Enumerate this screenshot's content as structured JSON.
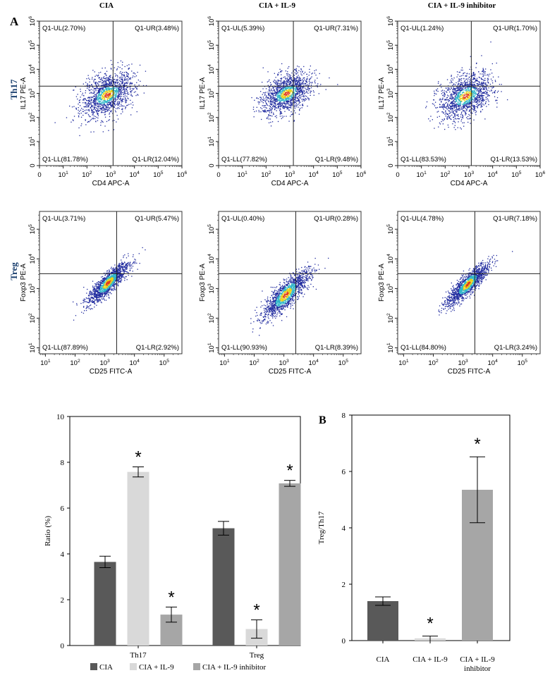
{
  "figure": {
    "panel_labels": [
      "A",
      "B"
    ],
    "column_titles": [
      "CIA",
      "CIA + IL-9",
      "CIA + IL-9 inhibitor"
    ],
    "row_labels": [
      "Th17",
      "Treg"
    ]
  },
  "colors": {
    "cia": "#595959",
    "cia_il9": "#d9d9d9",
    "cia_il9_inhibitor": "#a6a6a6",
    "axis": "#000000",
    "density_low": "#1f2a9e",
    "density_mid": "#2fb6c9",
    "density_high": "#e8d21c",
    "density_peak": "#e23b1c"
  },
  "chart_data": [
    {
      "type": "scatter",
      "subtype": "flow-cytometry-density",
      "row": "Th17",
      "column": "CIA",
      "xlabel": "CD4 APC-A",
      "ylabel": "IL17 PE-A",
      "x_ticks": [
        "0",
        "10^1",
        "10^2",
        "10^3",
        "10^4",
        "10^5",
        "10^6"
      ],
      "y_ticks": [
        "0",
        "10^1",
        "10^2",
        "10^3",
        "10^4",
        "10^5",
        "10^6"
      ],
      "gate": {
        "x_log": 3.1,
        "y_log": 3.3
      },
      "cluster": {
        "x_log": 2.85,
        "y_log": 2.95,
        "spread_x": 0.55,
        "spread_y": 0.55
      },
      "quadrants": {
        "UL": "Q1-UL(2.70%)",
        "UR": "Q1-UR(3.48%)",
        "LL": "Q1-LL(81.78%)",
        "LR": "Q1-LR(12.04%)"
      }
    },
    {
      "type": "scatter",
      "subtype": "flow-cytometry-density",
      "row": "Th17",
      "column": "CIA + IL-9",
      "xlabel": "CD4 APC-A",
      "ylabel": "IL17 PE-A",
      "x_ticks": [
        "0",
        "10^1",
        "10^2",
        "10^3",
        "10^4",
        "10^5",
        "10^6"
      ],
      "y_ticks": [
        "0",
        "10^1",
        "10^2",
        "10^3",
        "10^4",
        "10^5",
        "10^6"
      ],
      "gate": {
        "x_log": 3.15,
        "y_log": 3.3
      },
      "cluster": {
        "x_log": 2.85,
        "y_log": 3.0,
        "spread_x": 0.5,
        "spread_y": 0.5
      },
      "quadrants": {
        "UL": "Q1-UL(5.39%)",
        "UR": "Q1-UR(7.31%)",
        "LL": "Q1-LL(77.82%)",
        "LR": "Q1-LR(9.48%)"
      }
    },
    {
      "type": "scatter",
      "subtype": "flow-cytometry-density",
      "row": "Th17",
      "column": "CIA + IL-9 inhibitor",
      "xlabel": "CD4 APC-A",
      "ylabel": "IL17 PE-A",
      "x_ticks": [
        "0",
        "10^1",
        "10^2",
        "10^3",
        "10^4",
        "10^5",
        "10^6"
      ],
      "y_ticks": [
        "0",
        "10^1",
        "10^2",
        "10^3",
        "10^4",
        "10^5",
        "10^6"
      ],
      "gate": {
        "x_log": 3.1,
        "y_log": 3.3
      },
      "cluster": {
        "x_log": 2.85,
        "y_log": 2.9,
        "spread_x": 0.55,
        "spread_y": 0.55
      },
      "quadrants": {
        "UL": "Q1-UL(1.24%)",
        "UR": "Q1-UR(1.70%)",
        "LL": "Q1-LL(83.53%)",
        "LR": "Q1-LR(13.53%)"
      }
    },
    {
      "type": "scatter",
      "subtype": "flow-cytometry-density",
      "row": "Treg",
      "column": "CIA",
      "xlabel": "CD25 FITC-A",
      "ylabel": "Foxp3 PE-A",
      "x_ticks": [
        "10^1",
        "10^2",
        "10^3",
        "10^4",
        "10^5"
      ],
      "y_ticks": [
        "10^1",
        "10^2",
        "10^3",
        "10^4",
        "10^5"
      ],
      "gate": {
        "x_log": 3.4,
        "y_log": 3.5
      },
      "cluster": {
        "x_log": 3.1,
        "y_log": 3.2,
        "spread_x": 0.35,
        "spread_y": 0.35
      },
      "quadrants": {
        "UL": "Q1-UL(3.71%)",
        "UR": "Q1-UR(5.47%)",
        "LL": "Q1-LL(87.89%)",
        "LR": "Q1-LR(2.92%)"
      }
    },
    {
      "type": "scatter",
      "subtype": "flow-cytometry-density",
      "row": "Treg",
      "column": "CIA + IL-9",
      "xlabel": "CD25 FITC-A",
      "ylabel": "Foxp3 PE-A",
      "x_ticks": [
        "10^1",
        "10^2",
        "10^3",
        "10^4",
        "10^5"
      ],
      "y_ticks": [
        "10^1",
        "10^2",
        "10^3",
        "10^4",
        "10^5"
      ],
      "gate": {
        "x_log": 3.4,
        "y_log": 3.5
      },
      "cluster": {
        "x_log": 3.05,
        "y_log": 2.8,
        "spread_x": 0.4,
        "spread_y": 0.45
      },
      "quadrants": {
        "UL": "Q1-UL(0.40%)",
        "UR": "Q1-UR(0.28%)",
        "LL": "Q1-LL(90.93%)",
        "LR": "Q1-LR(8.39%)"
      }
    },
    {
      "type": "scatter",
      "subtype": "flow-cytometry-density",
      "row": "Treg",
      "column": "CIA + IL-9 inhibitor",
      "xlabel": "CD25 FITC-A",
      "ylabel": "Foxp3 PE-A",
      "x_ticks": [
        "10^1",
        "10^2",
        "10^3",
        "10^4",
        "10^5"
      ],
      "y_ticks": [
        "10^1",
        "10^2",
        "10^3",
        "10^4",
        "10^5"
      ],
      "gate": {
        "x_log": 3.4,
        "y_log": 3.5
      },
      "cluster": {
        "x_log": 3.15,
        "y_log": 3.15,
        "spread_x": 0.35,
        "spread_y": 0.35
      },
      "quadrants": {
        "UL": "Q1-UL(4.78%)",
        "UR": "Q1-UR(7.18%)",
        "LL": "Q1-LL(84.80%)",
        "LR": "Q1-LR(3.24%)"
      }
    },
    {
      "type": "bar",
      "title": "",
      "xlabel": "",
      "ylabel": "Ratio (%)",
      "ylim": [
        0,
        10
      ],
      "y_ticks": [
        "0",
        "2",
        "4",
        "6",
        "8",
        "10"
      ],
      "categories": [
        "Th17",
        "Treg"
      ],
      "series": [
        {
          "name": "CIA",
          "values": [
            3.65,
            5.12
          ],
          "errors": [
            0.25,
            0.3
          ],
          "significant": [
            false,
            false
          ]
        },
        {
          "name": "CIA + IL-9",
          "values": [
            7.58,
            0.72
          ],
          "errors": [
            0.22,
            0.4
          ],
          "significant": [
            true,
            true
          ]
        },
        {
          "name": "CIA + IL-9 inhibitor",
          "values": [
            1.35,
            7.08
          ],
          "errors": [
            0.33,
            0.13
          ],
          "significant": [
            true,
            true
          ]
        }
      ],
      "significance_marker": "*",
      "legend": {
        "position": "bottom",
        "entries": [
          "CIA",
          "CIA + IL-9",
          "CIA + IL-9 inhibitor"
        ]
      }
    },
    {
      "type": "bar",
      "title": "",
      "xlabel": "",
      "ylabel": "Treg/Th17",
      "ylim": [
        0,
        8
      ],
      "y_ticks": [
        "0",
        "2",
        "4",
        "6",
        "8"
      ],
      "categories": [
        "CIA",
        "CIA + IL-9",
        "CIA + IL-9 inhibitor"
      ],
      "category_lines": [
        [
          "CIA"
        ],
        [
          "CIA + IL-9"
        ],
        [
          "CIA + IL-9",
          "inhibitor"
        ]
      ],
      "values": [
        1.4,
        0.08,
        5.35
      ],
      "errors": [
        0.15,
        0.08,
        1.17
      ],
      "significant": [
        false,
        true,
        true
      ],
      "significance_marker": "*"
    }
  ]
}
